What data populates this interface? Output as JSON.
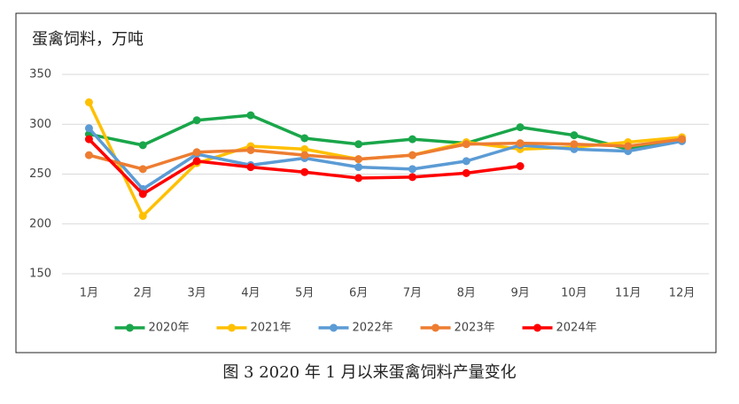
{
  "chart_data": {
    "type": "line",
    "title": "蛋禽饲料，万吨",
    "caption": "图 3  2020 年 1 月以来蛋禽饲料产量变化",
    "categories": [
      "1月",
      "2月",
      "3月",
      "4月",
      "5月",
      "6月",
      "7月",
      "8月",
      "9月",
      "10月",
      "11月",
      "12月"
    ],
    "series": [
      {
        "name": "2020年",
        "color": "#1aa64a",
        "values": [
          290,
          279,
          304,
          309,
          286,
          280,
          285,
          281,
          297,
          289,
          275,
          284
        ]
      },
      {
        "name": "2021年",
        "color": "#ffc000",
        "values": [
          322,
          208,
          261,
          278,
          275,
          265,
          269,
          282,
          275,
          277,
          282,
          287
        ]
      },
      {
        "name": "2022年",
        "color": "#5b9bd5",
        "values": [
          296,
          235,
          270,
          259,
          266,
          257,
          255,
          263,
          279,
          275,
          273,
          283
        ]
      },
      {
        "name": "2023年",
        "color": "#ed7d31",
        "values": [
          269,
          255,
          272,
          274,
          269,
          265,
          269,
          280,
          281,
          280,
          278,
          285
        ]
      },
      {
        "name": "2024年",
        "color": "#ff0000",
        "values": [
          285,
          230,
          263,
          257,
          252,
          246,
          247,
          251,
          258,
          null,
          null,
          null
        ]
      }
    ],
    "ylim": [
      150,
      350
    ],
    "yticks": [
      150,
      200,
      250,
      300,
      350
    ],
    "grid": true,
    "legend": "bottom"
  }
}
